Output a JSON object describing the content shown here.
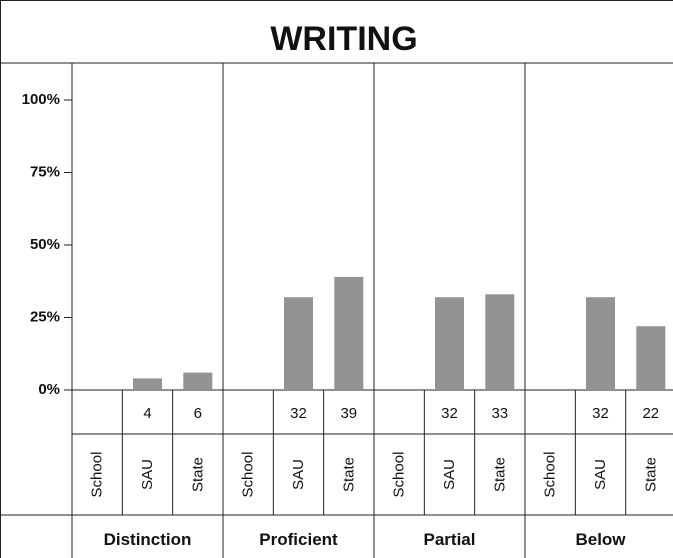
{
  "chart_data": {
    "type": "bar",
    "title": "WRITING",
    "categories": [
      "Distinction",
      "Proficient",
      "Partial",
      "Below"
    ],
    "subcategories": [
      "School",
      "SAU",
      "State"
    ],
    "y_ticks": [
      "100%",
      "75%",
      "50%",
      "25%",
      "0%"
    ],
    "ylim": [
      0,
      100
    ],
    "values": {
      "School": [
        null,
        null,
        null,
        null
      ],
      "SAU": [
        4,
        32,
        32,
        32
      ],
      "State": [
        6,
        39,
        33,
        22
      ]
    },
    "value_labels": {
      "School": [
        "",
        "",
        "",
        ""
      ],
      "SAU": [
        "4",
        "32",
        "32",
        "32"
      ],
      "State": [
        "6",
        "39",
        "33",
        "22"
      ]
    },
    "bar_color": "#939393",
    "legend": "none",
    "grid": false
  }
}
